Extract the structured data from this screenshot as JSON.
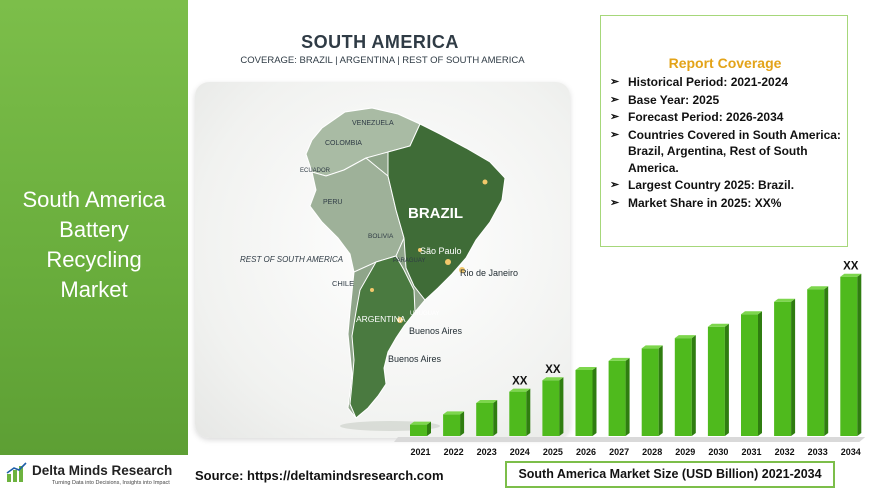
{
  "left_title_lines": [
    "South America",
    "Battery",
    "Recycling",
    "Market"
  ],
  "logo": {
    "name": "Delta Minds Research",
    "tagline": "Turning Data into Decisions, Insights into Impact"
  },
  "source_text": "Source: https://deltamindsresearch.com",
  "map": {
    "title": "SOUTH AMERICA",
    "coverage": "COVERAGE: BRAZIL | ARGENTINA | REST OF SOUTH AMERICA",
    "labels": {
      "venezuela": "VENEZUELA",
      "colombia": "COLOMBIA",
      "ecuador": "ECUADOR",
      "peru": "PERU",
      "bolivia": "BOLIVIA",
      "paraguay": "PARAGUAY",
      "uruguay": "URUGUAY",
      "brazil": "BRAZIL",
      "sao_paulo": "São Paulo",
      "rio": "Rio de Janeiro",
      "rest": "REST OF SOUTH AMERICA",
      "chile": "CHILE",
      "argentina": "ARGENTINA",
      "buenos_aires_1": "Buenos Aires",
      "buenos_aires_2": "Buenos Aires"
    }
  },
  "report": {
    "heading": "Report Coverage",
    "items": [
      "Historical Period: 2021-2024",
      "Base Year: 2025",
      "Forecast Period: 2026-2034",
      "Countries Covered in South America: Brazil, Argentina, Rest of South America.",
      "Largest Country 2025: Brazil.",
      "Market Share in 2025: XX%"
    ]
  },
  "chart_data": {
    "type": "bar",
    "title": "South America Market Size (USD Billion) 2021-2034",
    "categories": [
      "2021",
      "2022",
      "2023",
      "2024",
      "2025",
      "2026",
      "2027",
      "2028",
      "2029",
      "2030",
      "2031",
      "2032",
      "2033",
      "2034"
    ],
    "values": [
      1.0,
      1.9,
      2.9,
      3.9,
      4.9,
      5.8,
      6.6,
      7.7,
      8.6,
      9.6,
      10.7,
      11.8,
      12.9,
      14.0
    ],
    "ylim": [
      0,
      14.5
    ],
    "annotations": [
      {
        "category": "2024",
        "text": "XX"
      },
      {
        "category": "2025",
        "text": "XX"
      },
      {
        "category": "2034",
        "text": "XX"
      }
    ],
    "bar_color": "#4fba1d",
    "grid": false
  },
  "colors": {
    "accent_green": "#7cbe4a",
    "report_heading": "#e3a318",
    "map_dark": "#3d6b35"
  }
}
